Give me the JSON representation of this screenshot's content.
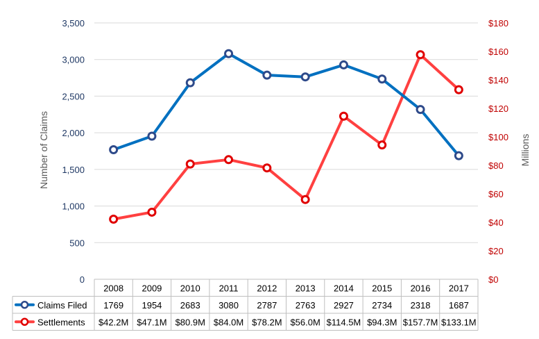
{
  "chart_data": {
    "type": "line",
    "categories": [
      "2008",
      "2009",
      "2010",
      "2011",
      "2012",
      "2013",
      "2014",
      "2015",
      "2016",
      "2017"
    ],
    "ylabel": "Number of Claims",
    "y2label": "Millions",
    "ylim": [
      0,
      3500
    ],
    "y2lim": [
      0,
      180
    ],
    "y_ticks": [
      "0",
      "500",
      "1,000",
      "1,500",
      "2,000",
      "2,500",
      "3,000",
      "3,500"
    ],
    "y2_ticks": [
      "$0",
      "$20",
      "$40",
      "$60",
      "$80",
      "$100",
      "$120",
      "$140",
      "$160",
      "$180"
    ],
    "grid": "horizontal",
    "legend": "data-table",
    "series": [
      {
        "name": "Claims Filed",
        "axis": "left",
        "color": "#0070C0",
        "values": [
          1769,
          1954,
          2683,
          3080,
          2787,
          2763,
          2927,
          2734,
          2318,
          1687
        ],
        "labels": [
          "1769",
          "1954",
          "2683",
          "3080",
          "2787",
          "2763",
          "2927",
          "2734",
          "2318",
          "1687"
        ]
      },
      {
        "name": "Settlements",
        "axis": "right",
        "color": "#FF4040",
        "values": [
          42.2,
          47.1,
          80.9,
          84.0,
          78.2,
          56.0,
          114.5,
          94.3,
          157.7,
          133.1
        ],
        "labels": [
          "$42.2M",
          "$47.1M",
          "$80.9M",
          "$84.0M",
          "$78.2M",
          "$56.0M",
          "$114.5M",
          "$94.3M",
          "$157.7M",
          "$133.1M"
        ]
      }
    ]
  },
  "colors": {
    "left_axis_text": "#1F3864",
    "right_axis_text": "#C00000",
    "grid": "#D9D9D9",
    "table_border": "#BFBFBF",
    "marker_outline_claims": "#2E4A8A",
    "marker_outline_settlements": "#E00000"
  }
}
